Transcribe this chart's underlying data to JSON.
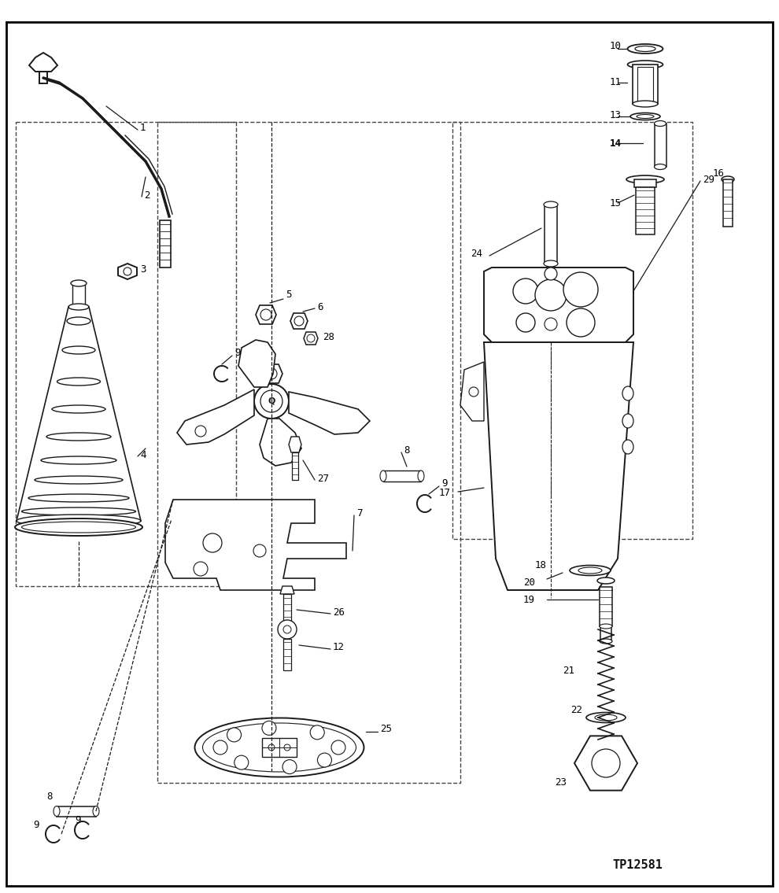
{
  "bg_color": "#ffffff",
  "lc": "#1a1a1a",
  "figsize": [
    9.9,
    11.35
  ],
  "dpi": 100,
  "watermark": "TP12581",
  "border": [
    8,
    28,
    974,
    1098
  ],
  "lw_main": 1.4,
  "lw_thin": 0.9,
  "label_fs": 9
}
